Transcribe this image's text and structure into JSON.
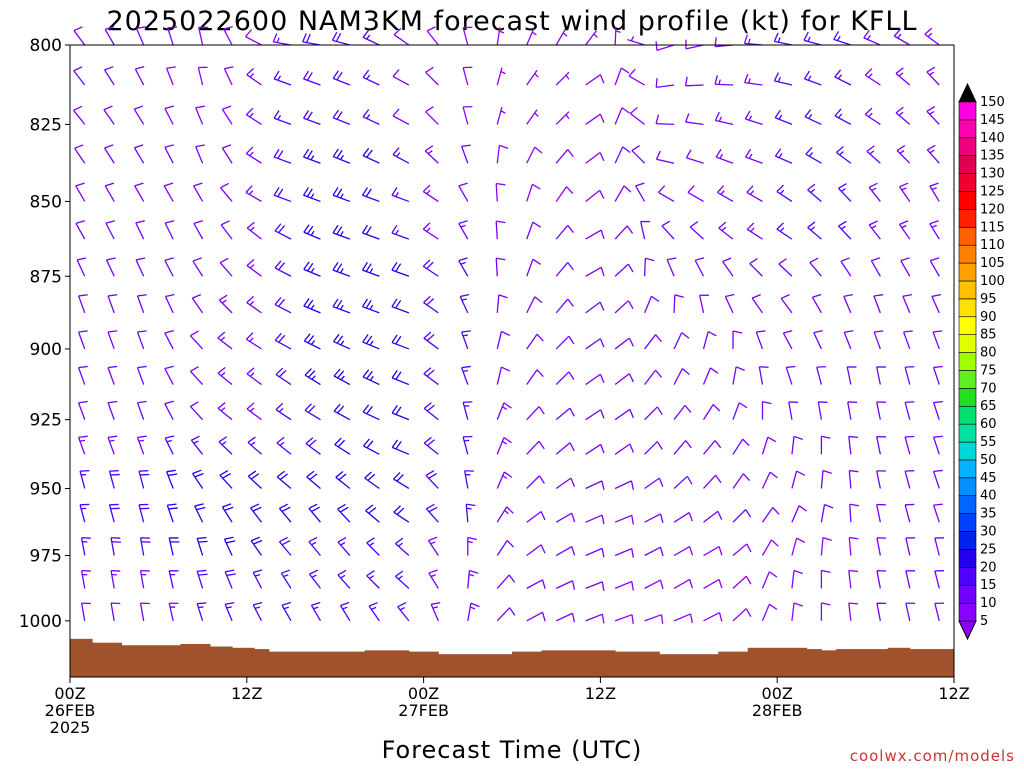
{
  "chart_data": {
    "type": "wind_barbs",
    "title": "2025022600 NAM3KM forecast wind profile (kt) for KFLL",
    "xlabel": "Forecast Time (UTC)",
    "ylabel": "",
    "units": "kt",
    "credit": "coolwx.com/models",
    "x_ticks": [
      {
        "hour": 0,
        "lines": [
          "00Z",
          "26FEB",
          "2025"
        ]
      },
      {
        "hour": 12,
        "lines": [
          "12Z"
        ]
      },
      {
        "hour": 24,
        "lines": [
          "00Z",
          "27FEB"
        ]
      },
      {
        "hour": 36,
        "lines": [
          "12Z"
        ]
      },
      {
        "hour": 48,
        "lines": [
          "00Z",
          "28FEB"
        ]
      },
      {
        "hour": 60,
        "lines": [
          "12Z"
        ]
      }
    ],
    "xlim": [
      0,
      60
    ],
    "y_ticks": [
      800,
      825,
      850,
      875,
      900,
      925,
      950,
      975,
      1000
    ],
    "ylim": [
      1022,
      800
    ],
    "y_scale": "log-pressure",
    "grid": false,
    "surface_color": "#a0522d",
    "surface_pressure": [
      {
        "hour": 0,
        "hpa": 1007
      },
      {
        "hour": 1.5,
        "hpa": 1008.5
      },
      {
        "hour": 3.5,
        "hpa": 1009.5
      },
      {
        "hour": 7.5,
        "hpa": 1009
      },
      {
        "hour": 9.5,
        "hpa": 1010
      },
      {
        "hour": 11,
        "hpa": 1010.5
      },
      {
        "hour": 12.5,
        "hpa": 1011
      },
      {
        "hour": 13.5,
        "hpa": 1012
      },
      {
        "hour": 20,
        "hpa": 1011.5
      },
      {
        "hour": 23,
        "hpa": 1012
      },
      {
        "hour": 25,
        "hpa": 1013
      },
      {
        "hour": 30,
        "hpa": 1012
      },
      {
        "hour": 32,
        "hpa": 1011.5
      },
      {
        "hour": 37,
        "hpa": 1012
      },
      {
        "hour": 40,
        "hpa": 1013
      },
      {
        "hour": 44,
        "hpa": 1012
      },
      {
        "hour": 46,
        "hpa": 1010.5
      },
      {
        "hour": 50,
        "hpa": 1011
      },
      {
        "hour": 51,
        "hpa": 1011.5
      },
      {
        "hour": 52,
        "hpa": 1011
      },
      {
        "hour": 55.5,
        "hpa": 1010.5
      },
      {
        "hour": 57,
        "hpa": 1011
      },
      {
        "hour": 60,
        "hpa": 1011
      }
    ],
    "colorbar": {
      "levels": [
        5,
        10,
        15,
        20,
        25,
        30,
        35,
        40,
        45,
        50,
        55,
        60,
        65,
        70,
        75,
        80,
        85,
        90,
        95,
        100,
        105,
        110,
        115,
        120,
        125,
        130,
        135,
        140,
        145,
        150
      ],
      "colors": [
        "#8b00ff",
        "#7400ff",
        "#5000ff",
        "#2200ee",
        "#0022ee",
        "#0040ff",
        "#0066ff",
        "#0090ff",
        "#00b4ff",
        "#00d8d8",
        "#00e0a0",
        "#00e070",
        "#20e020",
        "#60f020",
        "#a0ff00",
        "#e0ff00",
        "#ffff00",
        "#ffe000",
        "#ffc000",
        "#ffa000",
        "#ff8000",
        "#ff6000",
        "#ff2000",
        "#ff0000",
        "#ee0030",
        "#e00050",
        "#f00080",
        "#ff00b0",
        "#ff00e0",
        "#000000"
      ]
    },
    "profile_levels_hpa": [
      800,
      812.5,
      825,
      837.5,
      850,
      862.5,
      875,
      887.5,
      900,
      912.5,
      925,
      937.5,
      950,
      962.5,
      975,
      987.5,
      1000
    ],
    "keyframes": [
      {
        "hour": 0,
        "dir": [
          320,
          320,
          320,
          325,
          330,
          330,
          335,
          340,
          340,
          340,
          340,
          340,
          345,
          345,
          350,
          350,
          350
        ],
        "spd": [
          10,
          10,
          10,
          10,
          10,
          10,
          10,
          10,
          10,
          10,
          10,
          12,
          15,
          15,
          15,
          12,
          10
        ]
      },
      {
        "hour": 6,
        "dir": [
          340,
          335,
          330,
          330,
          330,
          335,
          335,
          340,
          340,
          340,
          340,
          340,
          345,
          345,
          350,
          350,
          350
        ],
        "spd": [
          10,
          10,
          10,
          10,
          10,
          10,
          10,
          10,
          10,
          12,
          12,
          15,
          20,
          20,
          20,
          15,
          12
        ]
      },
      {
        "hour": 10,
        "dir": [
          350,
          350,
          340,
          340,
          330,
          330,
          325,
          320,
          310,
          310,
          310,
          315,
          320,
          330,
          340,
          340,
          340
        ],
        "spd": [
          8,
          8,
          8,
          10,
          10,
          10,
          10,
          12,
          12,
          12,
          12,
          15,
          20,
          20,
          22,
          20,
          18
        ]
      },
      {
        "hour": 14,
        "dir": [
          280,
          290,
          290,
          290,
          290,
          300,
          300,
          300,
          300,
          305,
          305,
          310,
          310,
          320,
          320,
          330,
          330
        ],
        "spd": [
          10,
          15,
          15,
          15,
          15,
          15,
          15,
          15,
          15,
          15,
          15,
          15,
          20,
          20,
          20,
          15,
          15
        ]
      },
      {
        "hour": 18,
        "dir": [
          280,
          290,
          290,
          290,
          290,
          290,
          290,
          290,
          295,
          300,
          300,
          305,
          310,
          320,
          320,
          320,
          330
        ],
        "spd": [
          20,
          20,
          20,
          25,
          25,
          25,
          25,
          25,
          25,
          25,
          20,
          20,
          20,
          20,
          15,
          15,
          15
        ]
      },
      {
        "hour": 24,
        "dir": [
          310,
          300,
          300,
          300,
          290,
          290,
          290,
          290,
          290,
          290,
          290,
          290,
          300,
          300,
          310,
          310,
          320
        ],
        "spd": [
          10,
          10,
          10,
          15,
          15,
          15,
          20,
          20,
          20,
          20,
          20,
          20,
          20,
          20,
          15,
          15,
          15
        ]
      },
      {
        "hour": 30,
        "dir": [
          20,
          30,
          30,
          20,
          10,
          10,
          10,
          20,
          30,
          30,
          40,
          40,
          40,
          50,
          50,
          60,
          60
        ],
        "spd": [
          5,
          5,
          5,
          8,
          8,
          10,
          10,
          10,
          10,
          10,
          12,
          12,
          12,
          12,
          10,
          10,
          10
        ]
      },
      {
        "hour": 36,
        "dir": [
          40,
          60,
          60,
          60,
          60,
          70,
          70,
          60,
          60,
          60,
          60,
          60,
          70,
          70,
          70,
          70,
          70
        ],
        "spd": [
          5,
          8,
          8,
          10,
          10,
          10,
          10,
          10,
          10,
          12,
          12,
          12,
          12,
          12,
          10,
          10,
          10
        ]
      },
      {
        "hour": 40,
        "dir": [
          250,
          260,
          270,
          280,
          300,
          320,
          340,
          10,
          30,
          30,
          40,
          40,
          50,
          60,
          60,
          60,
          70
        ],
        "spd": [
          8,
          10,
          10,
          10,
          10,
          10,
          10,
          10,
          12,
          12,
          12,
          12,
          12,
          10,
          10,
          8,
          8
        ]
      },
      {
        "hour": 44,
        "dir": [
          260,
          270,
          280,
          290,
          300,
          310,
          330,
          340,
          10,
          20,
          30,
          40,
          40,
          50,
          60,
          60,
          60
        ],
        "spd": [
          10,
          12,
          12,
          12,
          12,
          12,
          12,
          12,
          12,
          12,
          12,
          12,
          10,
          10,
          8,
          8,
          8
        ]
      },
      {
        "hour": 48,
        "dir": [
          280,
          280,
          290,
          290,
          300,
          300,
          310,
          320,
          330,
          340,
          350,
          10,
          20,
          30,
          20,
          10,
          10
        ],
        "spd": [
          15,
          15,
          15,
          15,
          15,
          15,
          12,
          12,
          12,
          12,
          12,
          12,
          10,
          10,
          8,
          8,
          8
        ]
      },
      {
        "hour": 54,
        "dir": [
          290,
          300,
          300,
          310,
          320,
          320,
          330,
          340,
          340,
          350,
          350,
          350,
          350,
          350,
          350,
          350,
          350
        ],
        "spd": [
          15,
          15,
          15,
          15,
          15,
          15,
          12,
          12,
          12,
          12,
          12,
          12,
          12,
          12,
          10,
          10,
          10
        ]
      },
      {
        "hour": 60,
        "dir": [
          310,
          320,
          320,
          320,
          330,
          330,
          330,
          335,
          340,
          340,
          340,
          340,
          340,
          340,
          345,
          345,
          345
        ],
        "spd": [
          12,
          12,
          12,
          12,
          12,
          12,
          12,
          12,
          12,
          12,
          12,
          12,
          12,
          12,
          10,
          10,
          10
        ]
      }
    ]
  }
}
